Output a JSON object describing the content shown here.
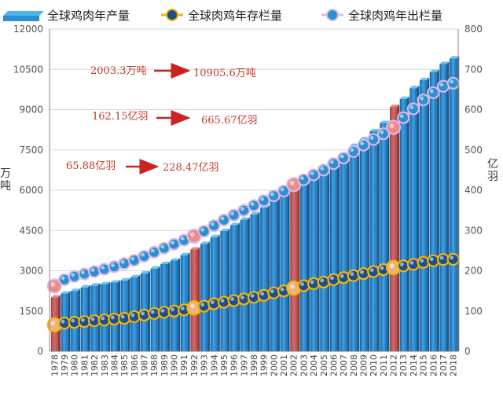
{
  "chart_data": {
    "type": "bar",
    "title": "",
    "legend": {
      "placement": "top",
      "entries": [
        "全球鸡肉年产量",
        "全球肉鸡年存栏量",
        "全球肉鸡年出栏量"
      ]
    },
    "y_left": {
      "label": "万吨",
      "ylim": [
        0,
        12000
      ],
      "ticks": [
        "0",
        "1500",
        "3000",
        "4500",
        "6000",
        "7500",
        "9000",
        "10500",
        "12000"
      ]
    },
    "y_right": {
      "label": "亿羽",
      "ylim": [
        0,
        800
      ],
      "ticks": [
        "0",
        "100",
        "200",
        "300",
        "400",
        "500",
        "600",
        "700",
        "800"
      ]
    },
    "grid": true,
    "categories": [
      "1978",
      "1979",
      "1980",
      "1981",
      "1982",
      "1983",
      "1984",
      "1985",
      "1986",
      "1987",
      "1988",
      "1989",
      "1990",
      "1991",
      "1992",
      "1993",
      "1994",
      "1995",
      "1996",
      "1997",
      "1998",
      "1999",
      "2000",
      "2001",
      "2002",
      "2003",
      "2004",
      "2005",
      "2006",
      "2007",
      "2008",
      "2009",
      "2010",
      "2011",
      "2012",
      "2013",
      "2014",
      "2015",
      "2016",
      "2017",
      "2018"
    ],
    "highlight_categories": [
      "1978",
      "1992",
      "2002",
      "2012"
    ],
    "series": [
      {
        "name": "全球鸡肉年产量",
        "kind": "bar",
        "axis": "left",
        "color": "#2b8fd1",
        "highlight_color": "#c85a5a",
        "values": [
          2003.3,
          2150,
          2250,
          2380,
          2450,
          2500,
          2560,
          2640,
          2760,
          2900,
          3080,
          3250,
          3380,
          3580,
          3790,
          4000,
          4250,
          4480,
          4700,
          4900,
          5100,
          5350,
          5600,
          5850,
          6100,
          6350,
          6580,
          6800,
          7000,
          7300,
          7650,
          7900,
          8200,
          8500,
          9100,
          9400,
          9800,
          10100,
          10400,
          10700,
          10905.6
        ]
      },
      {
        "name": "全球肉鸡年存栏量",
        "kind": "line",
        "axis": "right",
        "line_color": "#f2b705",
        "marker_color": "#1f4e8c",
        "highlight_marker_color": "#f0b27a",
        "values": [
          65.88,
          70,
          72,
          74,
          76,
          78,
          80,
          82,
          86,
          90,
          94,
          97,
          100,
          103,
          108,
          112,
          118,
          122,
          126,
          130,
          134,
          139,
          145,
          150,
          157,
          163,
          168,
          172,
          178,
          183,
          188,
          193,
          198,
          203,
          208,
          212,
          216,
          221,
          225,
          228,
          228.47
        ]
      },
      {
        "name": "全球肉鸡年出栏量",
        "kind": "line",
        "axis": "right",
        "line_color": "#d9b8e8",
        "marker_color": "#2b8fd1",
        "highlight_marker_color": "#f08a8a",
        "values": [
          162.15,
          178,
          186,
          192,
          198,
          204,
          210,
          218,
          226,
          236,
          246,
          256,
          266,
          276,
          286,
          298,
          312,
          326,
          338,
          350,
          362,
          374,
          386,
          398,
          414,
          426,
          438,
          450,
          466,
          480,
          496,
          512,
          526,
          540,
          556,
          580,
          602,
          624,
          642,
          658,
          665.67
        ]
      }
    ],
    "annotations": [
      {
        "from": "2003.3万吨",
        "to": "10905.6万吨"
      },
      {
        "from": "162.15亿羽",
        "to": "665.67亿羽"
      },
      {
        "from": "65.88亿羽",
        "to": "228.47亿羽"
      }
    ]
  }
}
